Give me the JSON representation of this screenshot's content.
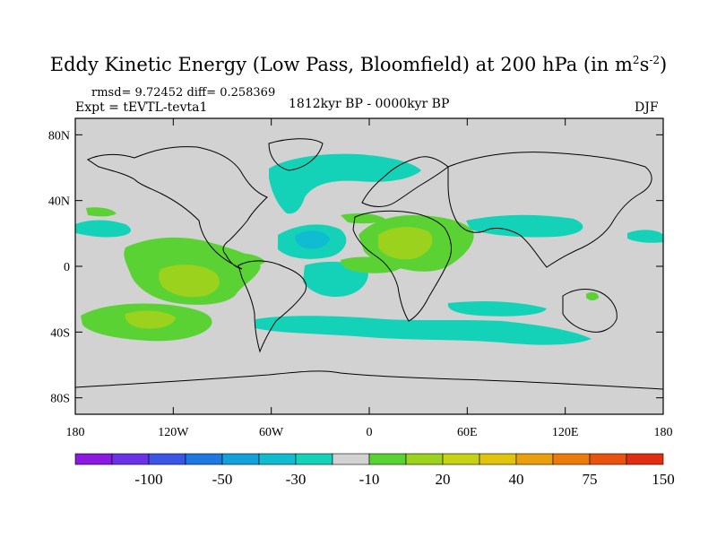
{
  "title": {
    "main": "Eddy Kinetic Energy (Low Pass, Bloomfield) at 200 hPa (in m",
    "sup1": "2",
    "mid": "s",
    "sup2": "-2",
    "close": ")"
  },
  "stats": "rmsd= 9.72452  diff= 0.258369",
  "experiment": "Expt = tEVTL-tevta1",
  "period": "1812kyr BP - 0000kyr BP",
  "season": "DJF",
  "lat_ticks": [
    "80N",
    "40N",
    "0",
    "40S",
    "80S"
  ],
  "lon_ticks": [
    "180",
    "120W",
    "60W",
    "0",
    "60E",
    "120E",
    "180"
  ],
  "colorbar": {
    "colors": [
      "#8a1ae0",
      "#6a33e8",
      "#3c55e6",
      "#1e78e0",
      "#14a0d8",
      "#10bcd0",
      "#14d2b8",
      "#d2d2d2",
      "#5ad234",
      "#9ad21e",
      "#c8d214",
      "#e0c40e",
      "#eaa00e",
      "#ec7a0c",
      "#e85410",
      "#e02e10"
    ],
    "labels": [
      "-100",
      "-50",
      "-30",
      "-10",
      "20",
      "40",
      "75",
      "150"
    ]
  },
  "chart_data": {
    "type": "map-contour",
    "variable": "Eddy Kinetic Energy (Low Pass, Bloomfield) at 200 hPa",
    "units": "m2s-2",
    "season": "DJF",
    "lon_range": [
      -180,
      180
    ],
    "lat_range": [
      -90,
      90
    ],
    "anomaly_regions": [
      {
        "region": "eastern Pacific (10N-20S, 150W-90W)",
        "level": "20 to 40"
      },
      {
        "region": "South Pacific (30S-45S, 140W-110W)",
        "level": "20 to 40"
      },
      {
        "region": "Africa / Arabia (10N-30N, 10E-40E)",
        "level": "20 to 40"
      },
      {
        "region": "North Atlantic (50N-65N, 60W-20W)",
        "level": "-10 to -30"
      },
      {
        "region": "subtropical Atlantic (20N-30N, 60W-20W)",
        "level": "-30 to -50"
      },
      {
        "region": "Southern Ocean (40S-55S, 80W-60E)",
        "level": "-10 to -30"
      },
      {
        "region": "South America / South Atlantic (20S-35S, 40W-10W)",
        "level": "-10 to -30"
      }
    ]
  }
}
